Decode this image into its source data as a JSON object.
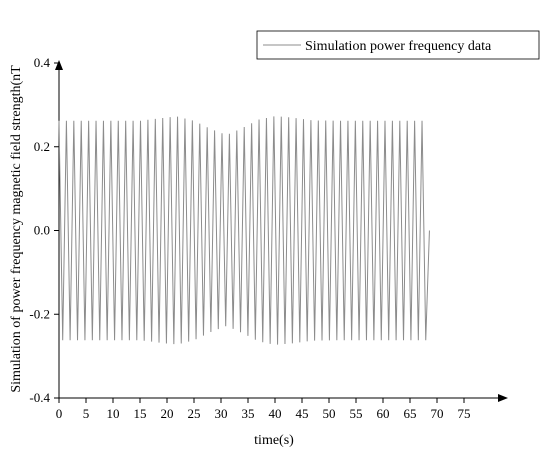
{
  "chart_data": {
    "type": "line",
    "title": "",
    "xlabel": "time(s)",
    "ylabel": "Simulation of power frequency magnetic field strength(nT",
    "xlim": [
      0,
      75
    ],
    "ylim": [
      -0.4,
      0.4
    ],
    "xticks": [
      "0",
      "5",
      "10",
      "15",
      "20",
      "25",
      "30",
      "35",
      "40",
      "45",
      "50",
      "55",
      "60",
      "65",
      "70",
      "75"
    ],
    "yticks": [
      "0.4",
      "0.2",
      "0.0",
      "-0.2",
      "-0.4"
    ],
    "legend_position": "top-right",
    "grid": false,
    "series": [
      {
        "name": "Simulation power frequency data",
        "color": "#8c8c8c",
        "pattern": "oscillation",
        "x_start": 0,
        "x_end": 68.6,
        "cycles": 50,
        "end_value": 0.0,
        "envelope_points": {
          "x": [
            0,
            15,
            20,
            22,
            25,
            28,
            31,
            34,
            37,
            40,
            43,
            47,
            52,
            60,
            68.6
          ],
          "amplitude": [
            0.262,
            0.262,
            0.27,
            0.272,
            0.262,
            0.243,
            0.228,
            0.245,
            0.265,
            0.273,
            0.27,
            0.263,
            0.262,
            0.262,
            0.262
          ]
        }
      }
    ]
  }
}
